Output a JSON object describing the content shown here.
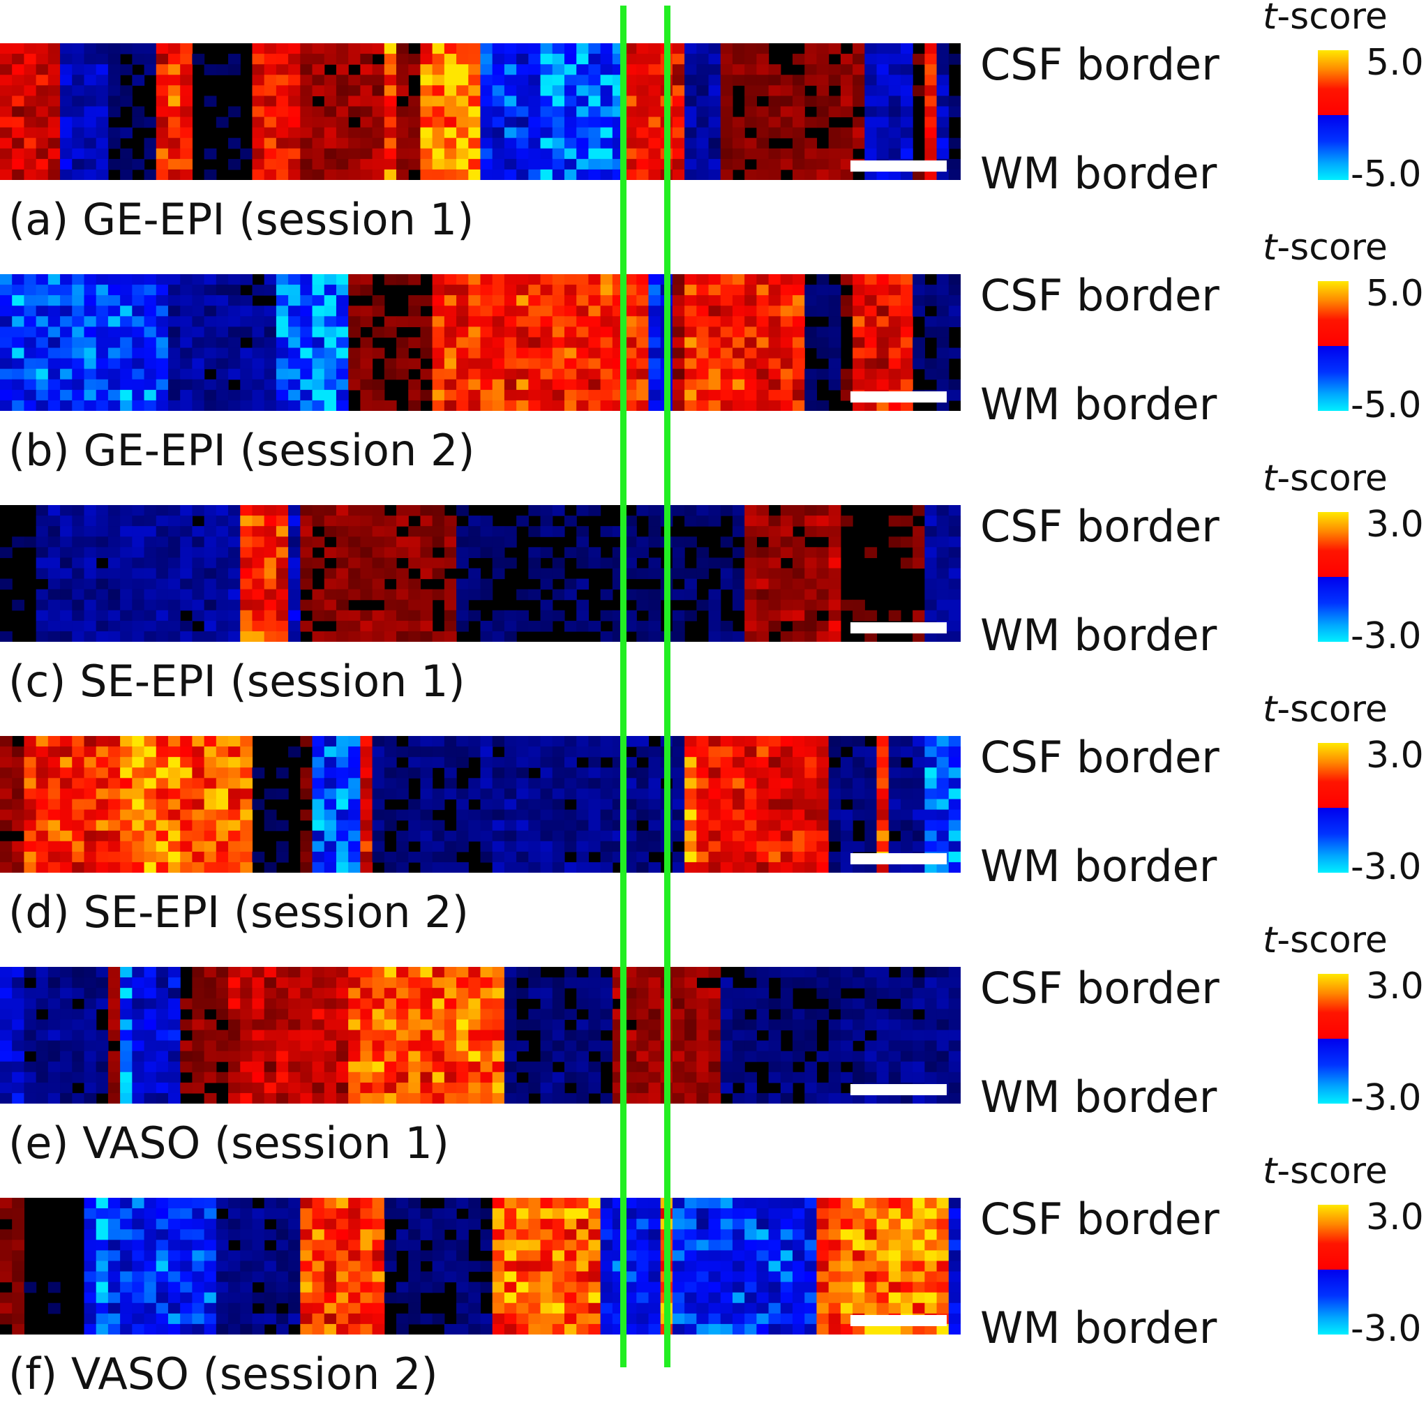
{
  "figure": {
    "panels": [
      {
        "caption": "(a) GE-EPI (session 1)",
        "csf_label": "CSF border",
        "wm_label": "WM border",
        "colorbar": {
          "title_italic": "t",
          "title_rest": "-score",
          "max": "5.0",
          "min": "-5.0"
        }
      },
      {
        "caption": "(b) GE-EPI (session 2)",
        "csf_label": "CSF border",
        "wm_label": "WM border",
        "colorbar": {
          "title_italic": "t",
          "title_rest": "-score",
          "max": "5.0",
          "min": "-5.0"
        }
      },
      {
        "caption": "(c) SE-EPI (session 1)",
        "csf_label": "CSF border",
        "wm_label": "WM border",
        "colorbar": {
          "title_italic": "t",
          "title_rest": "-score",
          "max": "3.0",
          "min": "-3.0"
        }
      },
      {
        "caption": "(d) SE-EPI (session 2)",
        "csf_label": "CSF border",
        "wm_label": "WM border",
        "colorbar": {
          "title_italic": "t",
          "title_rest": "-score",
          "max": "3.0",
          "min": "-3.0"
        }
      },
      {
        "caption": "(e) VASO (session 1)",
        "csf_label": "CSF border",
        "wm_label": "WM border",
        "colorbar": {
          "title_italic": "t",
          "title_rest": "-score",
          "max": "3.0",
          "min": "-3.0"
        }
      },
      {
        "caption": "(f) VASO (session 2)",
        "csf_label": "CSF border",
        "wm_label": "WM border",
        "colorbar": {
          "title_italic": "t",
          "title_rest": "-score",
          "max": "3.0",
          "min": "-3.0"
        }
      }
    ],
    "colors": {
      "positive_high": "#ffe800",
      "positive_mid": "#ff1500",
      "negative_mid": "#0022ee",
      "negative_low": "#00f0ff",
      "background": "#000000",
      "guide_lines": "#22ee22"
    }
  }
}
